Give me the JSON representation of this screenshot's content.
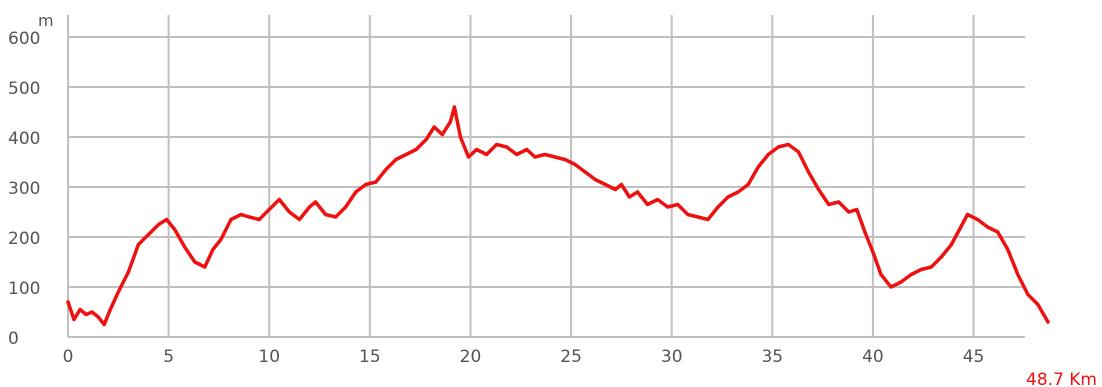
{
  "chart_data": {
    "type": "line",
    "ylabel": "m",
    "total_distance": "48.7 Km",
    "xlim": [
      0,
      48.7
    ],
    "ylim": [
      0,
      600
    ],
    "x_ticks": [
      0,
      5,
      10,
      15,
      20,
      25,
      30,
      35,
      40,
      45
    ],
    "y_ticks": [
      0,
      100,
      200,
      300,
      400,
      500,
      600
    ],
    "grid": true,
    "line_color": "#ee1111",
    "grid_color": "#c0c0c0",
    "series": [
      {
        "x": [
          0,
          0.3,
          0.6,
          0.9,
          1.2,
          1.5,
          1.8,
          2.1,
          2.5,
          3.0,
          3.5,
          4.0,
          4.5,
          4.9,
          5.3,
          5.8,
          6.3,
          6.8,
          7.2,
          7.6,
          8.1,
          8.6,
          9.0,
          9.5,
          10.0,
          10.5,
          11.0,
          11.5,
          12.0,
          12.3,
          12.8,
          13.3,
          13.8,
          14.3,
          14.8,
          15.3,
          15.8,
          16.3,
          16.8,
          17.3,
          17.8,
          18.2,
          18.6,
          19.0,
          19.2,
          19.5,
          19.9,
          20.3,
          20.8,
          21.3,
          21.8,
          22.3,
          22.8,
          23.2,
          23.7,
          24.2,
          24.7,
          25.2,
          25.7,
          26.2,
          26.7,
          27.2,
          27.5,
          27.9,
          28.3,
          28.8,
          29.3,
          29.8,
          30.3,
          30.8,
          31.3,
          31.8,
          32.3,
          32.8,
          33.3,
          33.8,
          34.3,
          34.8,
          35.3,
          35.8,
          36.3,
          36.8,
          37.3,
          37.8,
          38.3,
          38.8,
          39.2,
          39.6,
          40.0,
          40.4,
          40.9,
          41.4,
          41.9,
          42.4,
          42.9,
          43.4,
          43.9,
          44.3,
          44.7,
          45.2,
          45.7,
          46.2,
          46.7,
          47.2,
          47.7,
          48.2,
          48.7
        ],
        "y": [
          70,
          35,
          55,
          45,
          50,
          40,
          25,
          55,
          90,
          130,
          185,
          205,
          225,
          235,
          215,
          180,
          150,
          140,
          175,
          195,
          235,
          245,
          240,
          235,
          255,
          275,
          250,
          235,
          260,
          270,
          245,
          240,
          260,
          290,
          305,
          310,
          335,
          355,
          365,
          375,
          395,
          420,
          405,
          430,
          460,
          400,
          360,
          375,
          365,
          385,
          380,
          365,
          375,
          360,
          365,
          360,
          355,
          345,
          330,
          315,
          305,
          295,
          305,
          280,
          290,
          265,
          275,
          260,
          265,
          245,
          240,
          235,
          260,
          280,
          290,
          305,
          340,
          365,
          380,
          385,
          370,
          330,
          295,
          265,
          270,
          250,
          255,
          210,
          170,
          125,
          100,
          110,
          125,
          135,
          140,
          160,
          185,
          215,
          245,
          235,
          220,
          210,
          175,
          125,
          85,
          65,
          30
        ]
      }
    ]
  }
}
